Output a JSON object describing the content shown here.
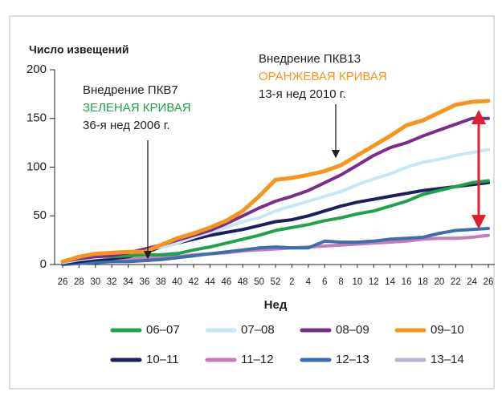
{
  "chart_data": {
    "type": "line",
    "y_label": "Число извещений",
    "x_label": "Нед",
    "categories": [
      "26",
      "28",
      "30",
      "32",
      "34",
      "36",
      "38",
      "40",
      "42",
      "44",
      "46",
      "48",
      "50",
      "52",
      "2",
      "4",
      "6",
      "8",
      "10",
      "12",
      "14",
      "16",
      "18",
      "20",
      "22",
      "24",
      "26"
    ],
    "ylim": [
      0,
      200
    ],
    "yticks": [
      0,
      50,
      100,
      150,
      200
    ],
    "annotations": [
      {
        "text": "Внедрение ПКВ7",
        "color": "#231f20"
      },
      {
        "text": "ЗЕЛЕНАЯ КРИВАЯ",
        "color": "#1ea34a"
      },
      {
        "text": "36-я нед 2006 г.",
        "color": "#231f20"
      },
      {
        "text": "Внедрение ПКВ13",
        "color": "#231f20"
      },
      {
        "text": "ОРАНЖЕВАЯ КРИВАЯ",
        "color": "#f7941d"
      },
      {
        "text": "13-я нед 2010 г.",
        "color": "#231f20"
      }
    ],
    "series": [
      {
        "name": "06–07",
        "color": "#1ea34a",
        "values": [
          2,
          5,
          7,
          8,
          9,
          10,
          10,
          11,
          15,
          18,
          22,
          26,
          30,
          35,
          38,
          41,
          45,
          48,
          52,
          55,
          60,
          65,
          72,
          76,
          80,
          84,
          86
        ]
      },
      {
        "name": "07–08",
        "color": "#c7e6f7",
        "values": [
          2,
          5,
          7,
          9,
          12,
          15,
          18,
          22,
          28,
          33,
          38,
          44,
          48,
          55,
          60,
          65,
          70,
          75,
          82,
          88,
          93,
          100,
          105,
          108,
          112,
          115,
          118
        ]
      },
      {
        "name": "08–09",
        "color": "#7b2d8e",
        "values": [
          3,
          6,
          8,
          9,
          12,
          16,
          20,
          25,
          30,
          35,
          42,
          50,
          58,
          65,
          70,
          76,
          84,
          92,
          102,
          112,
          120,
          125,
          132,
          138,
          144,
          150,
          150
        ]
      },
      {
        "name": "09–10",
        "color": "#f7941d",
        "values": [
          3,
          8,
          11,
          12,
          13,
          13,
          20,
          27,
          32,
          38,
          45,
          55,
          70,
          87,
          89,
          92,
          96,
          102,
          112,
          122,
          132,
          143,
          148,
          156,
          164,
          167,
          168
        ]
      },
      {
        "name": "10–11",
        "color": "#1b1f5e",
        "values": [
          1,
          3,
          5,
          6,
          8,
          12,
          18,
          22,
          26,
          30,
          33,
          36,
          40,
          44,
          46,
          50,
          55,
          60,
          64,
          67,
          70,
          73,
          76,
          78,
          80,
          82,
          84
        ]
      },
      {
        "name": "11–12",
        "color": "#c77bb8",
        "values": [
          0,
          2,
          3,
          4,
          5,
          6,
          7,
          8,
          10,
          11,
          12,
          14,
          15,
          16,
          17,
          18,
          19,
          20,
          21,
          22,
          23,
          24,
          26,
          27,
          27,
          28,
          30
        ]
      },
      {
        "name": "12–13",
        "color": "#3d6fb0",
        "values": [
          0,
          1,
          2,
          3,
          3,
          4,
          5,
          7,
          9,
          11,
          13,
          15,
          17,
          18,
          17,
          17,
          24,
          23,
          23,
          24,
          26,
          27,
          28,
          32,
          35,
          36,
          37
        ]
      },
      {
        "name": "13–14",
        "color": "#b8b4d4",
        "values": [
          2,
          4,
          4,
          5,
          6,
          8,
          10,
          12,
          null,
          null,
          null,
          null,
          null,
          null,
          null,
          null,
          null,
          null,
          null,
          null,
          null,
          null,
          null,
          null,
          null,
          null,
          null
        ]
      }
    ]
  }
}
